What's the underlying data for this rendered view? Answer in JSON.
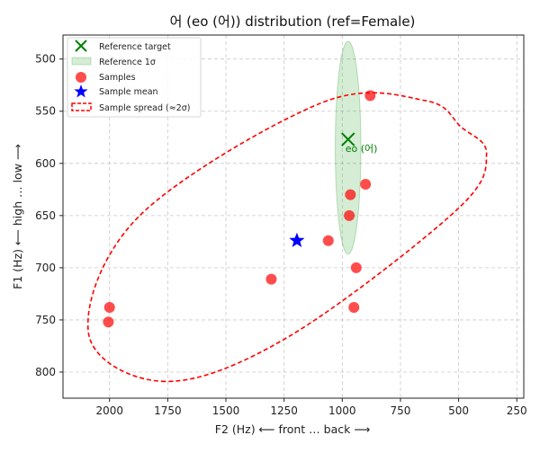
{
  "chart_data": {
    "type": "scatter",
    "title": "어 (eo (어)) distribution (ref=Female)",
    "xlabel": "F2 (Hz) ⟵ front … back ⟶",
    "ylabel": "F1 (Hz) ⟵ high … low ⟶",
    "xlim": [
      2200,
      220
    ],
    "ylim": [
      825,
      477
    ],
    "x_inverted": true,
    "y_inverted": true,
    "xticks": [
      2000,
      1750,
      1500,
      1250,
      1000,
      750,
      500,
      250
    ],
    "yticks": [
      500,
      550,
      600,
      650,
      700,
      750,
      800
    ],
    "grid": true,
    "legend_position": "upper-left",
    "legend": [
      {
        "key": "target",
        "label": "Reference target"
      },
      {
        "key": "ref_ellipse",
        "label": "Reference 1σ"
      },
      {
        "key": "samples",
        "label": "Samples"
      },
      {
        "key": "mean",
        "label": "Sample mean"
      },
      {
        "key": "spread",
        "label": "Sample spread (≈2σ)"
      }
    ],
    "reference_target": {
      "F2": 975,
      "F1": 577,
      "label": "eo (어)",
      "color": "#008000"
    },
    "reference_ellipse": {
      "center_F2": 975,
      "center_F1": 585,
      "half_width_F2": 55,
      "half_height_F1": 102,
      "color": "#2ca02c"
    },
    "samples": {
      "color": "#ff0000",
      "points": [
        {
          "F2": 880,
          "F1": 535
        },
        {
          "F2": 900,
          "F1": 620
        },
        {
          "F2": 965,
          "F1": 630
        },
        {
          "F2": 970,
          "F1": 650
        },
        {
          "F2": 1060,
          "F1": 674
        },
        {
          "F2": 940,
          "F1": 700
        },
        {
          "F2": 1305,
          "F1": 711
        },
        {
          "F2": 2000,
          "F1": 738
        },
        {
          "F2": 950,
          "F1": 738
        },
        {
          "F2": 2005,
          "F1": 752
        }
      ]
    },
    "sample_mean": {
      "F2": 1195,
      "F1": 674,
      "color": "#0000ff"
    },
    "sample_spread_ellipse": {
      "color": "#ff0000",
      "outline_points": [
        [
          1760,
          809
        ],
        [
          2090,
          763
        ],
        [
          1870,
          650
        ],
        [
          1090,
          542
        ],
        [
          640,
          540
        ],
        [
          490,
          565
        ],
        [
          380,
          591
        ],
        [
          510,
          645
        ],
        [
          1230,
          766
        ]
      ]
    }
  }
}
